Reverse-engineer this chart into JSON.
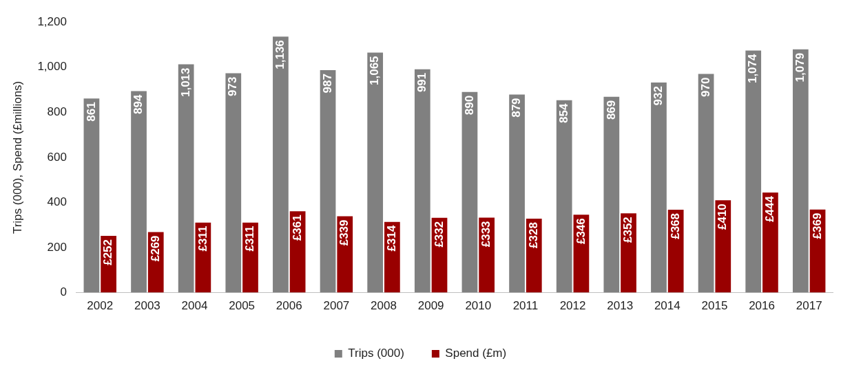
{
  "chart_data": {
    "type": "bar",
    "ylabel": "Trips (000), Spend (£millions)",
    "categories": [
      "2002",
      "2003",
      "2004",
      "2005",
      "2006",
      "2007",
      "2008",
      "2009",
      "2010",
      "2011",
      "2012",
      "2013",
      "2014",
      "2015",
      "2016",
      "2017"
    ],
    "series": [
      {
        "name": "Trips (000)",
        "color": "#808080",
        "values": [
          861,
          894,
          1013,
          973,
          1136,
          987,
          1065,
          991,
          890,
          879,
          854,
          869,
          932,
          970,
          1074,
          1079
        ],
        "value_labels": [
          "861",
          "894",
          "1,013",
          "973",
          "1,136",
          "987",
          "1,065",
          "991",
          "890",
          "879",
          "854",
          "869",
          "932",
          "970",
          "1,074",
          "1,079"
        ]
      },
      {
        "name": "Spend (£m)",
        "color": "#990000",
        "values": [
          252,
          269,
          311,
          311,
          361,
          339,
          314,
          332,
          333,
          328,
          346,
          352,
          368,
          410,
          444,
          369
        ],
        "value_labels": [
          "£252",
          "£269",
          "£311",
          "£311",
          "£361",
          "£339",
          "£314",
          "£332",
          "£333",
          "£328",
          "£346",
          "£352",
          "£368",
          "£410",
          "£444",
          "£369"
        ]
      }
    ],
    "ylim": [
      0,
      1200
    ],
    "yticks": [
      0,
      200,
      400,
      600,
      800,
      {
        "value": 1000,
        "label": "1,000"
      },
      {
        "value": 1200,
        "label": "1,200"
      }
    ],
    "grid": false,
    "legend": "bottom"
  }
}
